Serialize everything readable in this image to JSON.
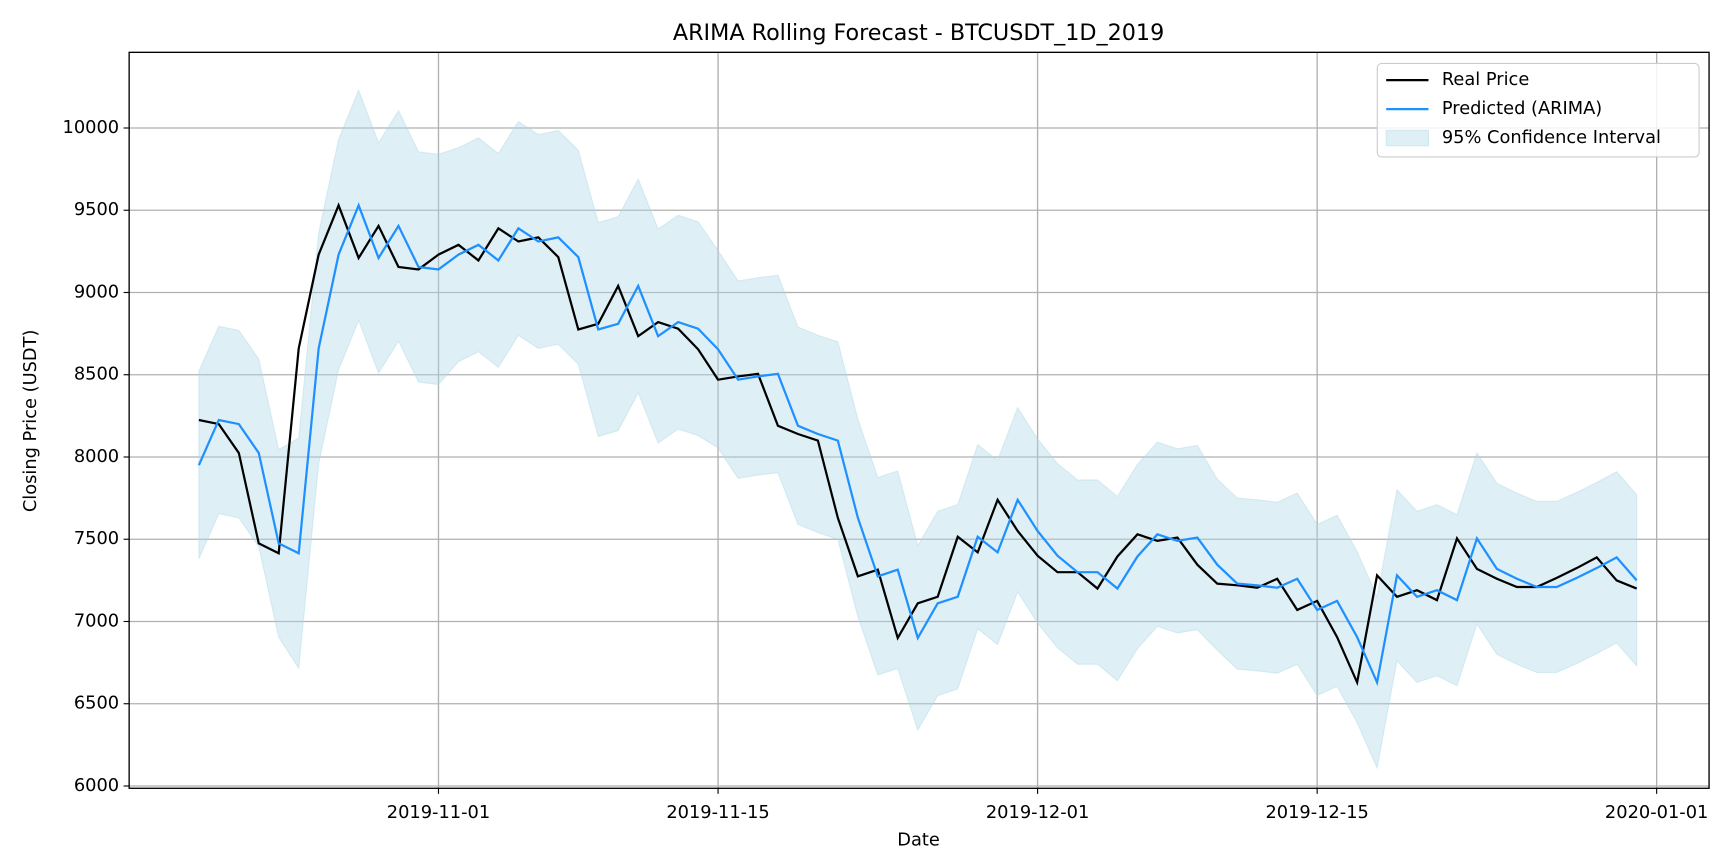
{
  "chart_data": {
    "type": "line",
    "title": "ARIMA Rolling Forecast - BTCUSDT_1D_2019",
    "xlabel": "Date",
    "ylabel": "Closing Price (USDT)",
    "x": [
      "2019-10-20",
      "2019-10-21",
      "2019-10-22",
      "2019-10-23",
      "2019-10-24",
      "2019-10-25",
      "2019-10-26",
      "2019-10-27",
      "2019-10-28",
      "2019-10-29",
      "2019-10-30",
      "2019-10-31",
      "2019-11-01",
      "2019-11-02",
      "2019-11-03",
      "2019-11-04",
      "2019-11-05",
      "2019-11-06",
      "2019-11-07",
      "2019-11-08",
      "2019-11-09",
      "2019-11-10",
      "2019-11-11",
      "2019-11-12",
      "2019-11-13",
      "2019-11-14",
      "2019-11-15",
      "2019-11-16",
      "2019-11-17",
      "2019-11-18",
      "2019-11-19",
      "2019-11-20",
      "2019-11-21",
      "2019-11-22",
      "2019-11-23",
      "2019-11-24",
      "2019-11-25",
      "2019-11-26",
      "2019-11-27",
      "2019-11-28",
      "2019-11-29",
      "2019-11-30",
      "2019-12-01",
      "2019-12-02",
      "2019-12-03",
      "2019-12-04",
      "2019-12-05",
      "2019-12-06",
      "2019-12-07",
      "2019-12-08",
      "2019-12-09",
      "2019-12-10",
      "2019-12-11",
      "2019-12-12",
      "2019-12-13",
      "2019-12-14",
      "2019-12-15",
      "2019-12-16",
      "2019-12-17",
      "2019-12-18",
      "2019-12-19",
      "2019-12-20",
      "2019-12-21",
      "2019-12-22",
      "2019-12-23",
      "2019-12-24",
      "2019-12-25",
      "2019-12-26",
      "2019-12-27",
      "2019-12-28",
      "2019-12-29",
      "2019-12-30",
      "2019-12-31"
    ],
    "series": [
      {
        "name": "Real Price",
        "color": "#000000",
        "values": [
          8225,
          8200,
          8025,
          7475,
          7415,
          8660,
          9230,
          9530,
          9210,
          9405,
          9155,
          9140,
          9230,
          9290,
          9195,
          9390,
          9310,
          9335,
          9215,
          8775,
          8810,
          9040,
          8735,
          8820,
          8780,
          8655,
          8470,
          8490,
          8505,
          8190,
          8140,
          8100,
          7630,
          7275,
          7315,
          6900,
          7110,
          7150,
          7515,
          7420,
          7740,
          7550,
          7400,
          7300,
          7300,
          7200,
          7395,
          7530,
          7490,
          7510,
          7345,
          7230,
          7220,
          7205,
          7260,
          7070,
          7125,
          6905,
          6630,
          7280,
          7150,
          7190,
          7130,
          7505,
          7320,
          7260,
          7210,
          7210,
          7265,
          7325,
          7390,
          7250,
          7200
        ]
      },
      {
        "name": "Predicted (ARIMA)",
        "color": "#1e90ff",
        "values": [
          7950,
          8225,
          8200,
          8025,
          7475,
          7415,
          8660,
          9230,
          9530,
          9210,
          9405,
          9155,
          9140,
          9230,
          9290,
          9195,
          9390,
          9310,
          9335,
          9215,
          8775,
          8810,
          9040,
          8735,
          8820,
          8780,
          8655,
          8470,
          8490,
          8505,
          8190,
          8140,
          8100,
          7630,
          7275,
          7315,
          6900,
          7110,
          7150,
          7515,
          7420,
          7740,
          7550,
          7400,
          7300,
          7300,
          7200,
          7395,
          7530,
          7490,
          7510,
          7345,
          7230,
          7220,
          7205,
          7260,
          7070,
          7125,
          6905,
          6630,
          7280,
          7150,
          7190,
          7130,
          7505,
          7320,
          7260,
          7210,
          7210,
          7265,
          7325,
          7390,
          7250
        ]
      }
    ],
    "band": {
      "name": "95% Confidence Interval",
      "color": "#add8e6",
      "upper": [
        8520,
        8795,
        8770,
        8595,
        8045,
        8115,
        9360,
        9930,
        10230,
        9910,
        10105,
        9855,
        9840,
        9880,
        9940,
        9845,
        10040,
        9960,
        9985,
        9865,
        9425,
        9460,
        9690,
        9385,
        9470,
        9430,
        9255,
        9070,
        9090,
        9105,
        8790,
        8740,
        8700,
        8230,
        7875,
        7915,
        7460,
        7670,
        7710,
        8075,
        7980,
        8300,
        8110,
        7960,
        7860,
        7860,
        7760,
        7955,
        8090,
        8050,
        8070,
        7865,
        7750,
        7740,
        7725,
        7780,
        7590,
        7645,
        7425,
        7150,
        7800,
        7670,
        7710,
        7650,
        8025,
        7840,
        7780,
        7730,
        7730,
        7785,
        7845,
        7910,
        7770
      ],
      "lower": [
        7380,
        7655,
        7630,
        7455,
        6905,
        6715,
        7960,
        8530,
        8830,
        8510,
        8705,
        8455,
        8440,
        8580,
        8640,
        8545,
        8740,
        8660,
        8685,
        8565,
        8125,
        8160,
        8390,
        8085,
        8170,
        8130,
        8055,
        7870,
        7890,
        7905,
        7590,
        7540,
        7500,
        7030,
        6675,
        6715,
        6340,
        6550,
        6590,
        6955,
        6860,
        7180,
        6990,
        6840,
        6740,
        6740,
        6640,
        6835,
        6970,
        6930,
        6950,
        6825,
        6710,
        6700,
        6685,
        6740,
        6550,
        6605,
        6385,
        6110,
        6760,
        6630,
        6670,
        6610,
        6985,
        6800,
        6740,
        6690,
        6690,
        6745,
        6805,
        6870,
        6730
      ]
    },
    "xlim": [
      "2019-10-16T12:15",
      "2020-01-03T15:00"
    ],
    "xticks": [
      "2019-11-01",
      "2019-11-15",
      "2019-12-01",
      "2019-12-15",
      "2020-01-01"
    ],
    "ylim": [
      5986,
      10460
    ],
    "yticks": [
      6000,
      6500,
      7000,
      7500,
      8000,
      8500,
      9000,
      9500,
      10000
    ],
    "grid": true,
    "legend": "upper right"
  }
}
